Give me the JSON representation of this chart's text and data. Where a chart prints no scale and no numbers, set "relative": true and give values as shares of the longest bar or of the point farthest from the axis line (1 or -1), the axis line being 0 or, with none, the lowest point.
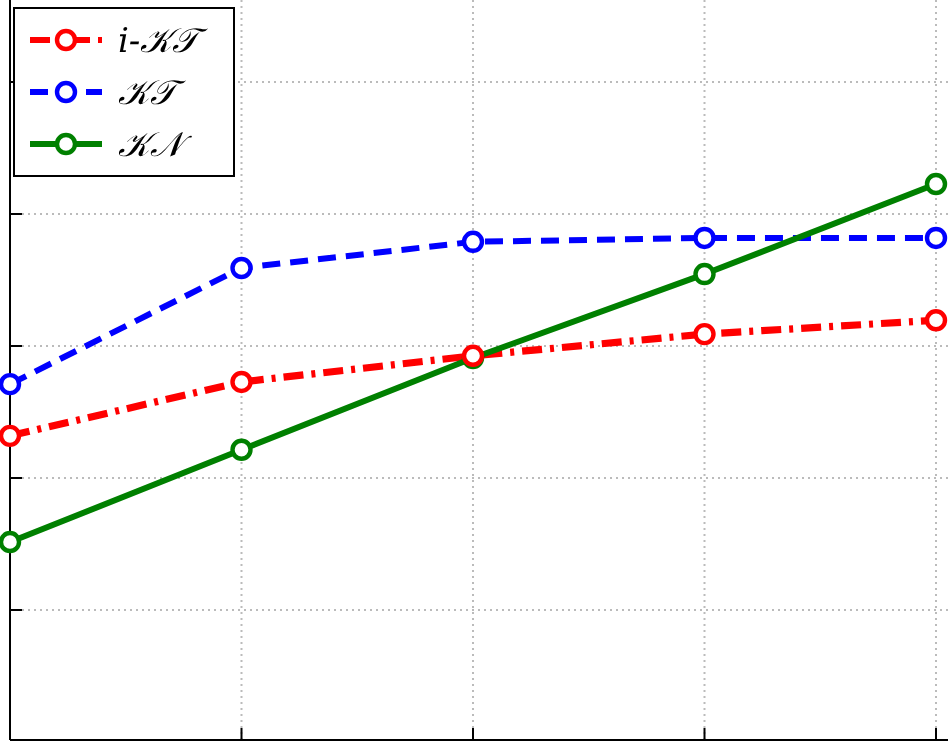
{
  "chart_data": {
    "type": "line",
    "relative": true,
    "categories": [
      null,
      null,
      null,
      null,
      null
    ],
    "grid": true,
    "legend": "top left",
    "marker": "circle",
    "series": [
      {
        "name": "i-𝒦𝒯",
        "color": "#ff0000",
        "line_style": "dotted",
        "values": [
          0.547,
          0.644,
          0.691,
          0.73,
          0.755
        ]
      },
      {
        "name": "𝒦𝒯",
        "color": "#0000ff",
        "line_style": "dashed",
        "values": [
          0.64,
          0.849,
          0.896,
          0.903,
          0.903
        ]
      },
      {
        "name": "𝒦𝒩",
        "color": "#008000",
        "line_style": "solid",
        "values": [
          0.356,
          0.522,
          0.687,
          0.838,
          1
        ]
      }
    ]
  }
}
